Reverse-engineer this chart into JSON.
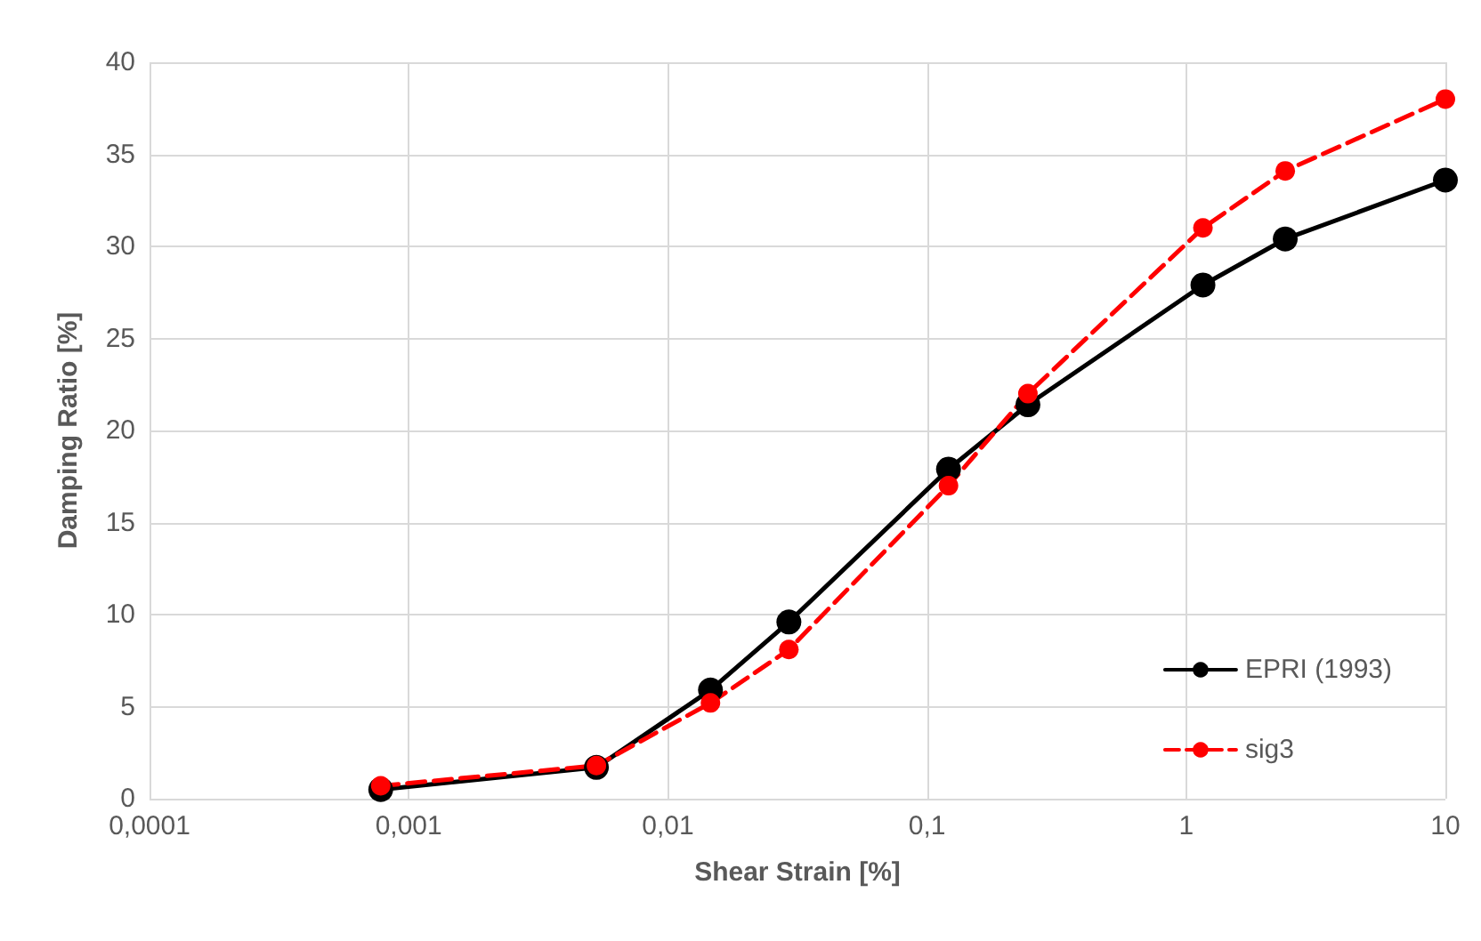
{
  "chart_data": {
    "type": "line",
    "xlabel": "Shear Strain [%]",
    "ylabel": "Damping Ratio [%]",
    "log": "x",
    "xlim": [
      0.0001,
      10
    ],
    "xticks": [
      {
        "value": 0.0001,
        "label": "0,0001"
      },
      {
        "value": 0.001,
        "label": "0,001"
      },
      {
        "value": 0.01,
        "label": "0,01"
      },
      {
        "value": 0.1,
        "label": "0,1"
      },
      1,
      10
    ],
    "ylim": [
      0,
      40
    ],
    "yticks": [
      0,
      5,
      10,
      15,
      20,
      25,
      30,
      35,
      40
    ],
    "grid": true,
    "legend": "bottom right",
    "marker": "circle",
    "x": [
      0.00078,
      0.0053,
      0.0146,
      0.0293,
      0.121,
      0.245,
      1.16,
      2.41,
      10
    ],
    "series": [
      {
        "name": "EPRI (1993)",
        "color": "#000000",
        "line_style": "solid",
        "values": [
          0.5,
          1.7,
          5.9,
          9.6,
          17.9,
          21.4,
          27.9,
          30.4,
          33.6
        ]
      },
      {
        "name": "sig3",
        "color": "#ff0000",
        "line_style": "dashed",
        "values": [
          0.7,
          1.8,
          5.2,
          8.1,
          17.0,
          22.0,
          31.0,
          34.1,
          38.0
        ]
      }
    ]
  }
}
